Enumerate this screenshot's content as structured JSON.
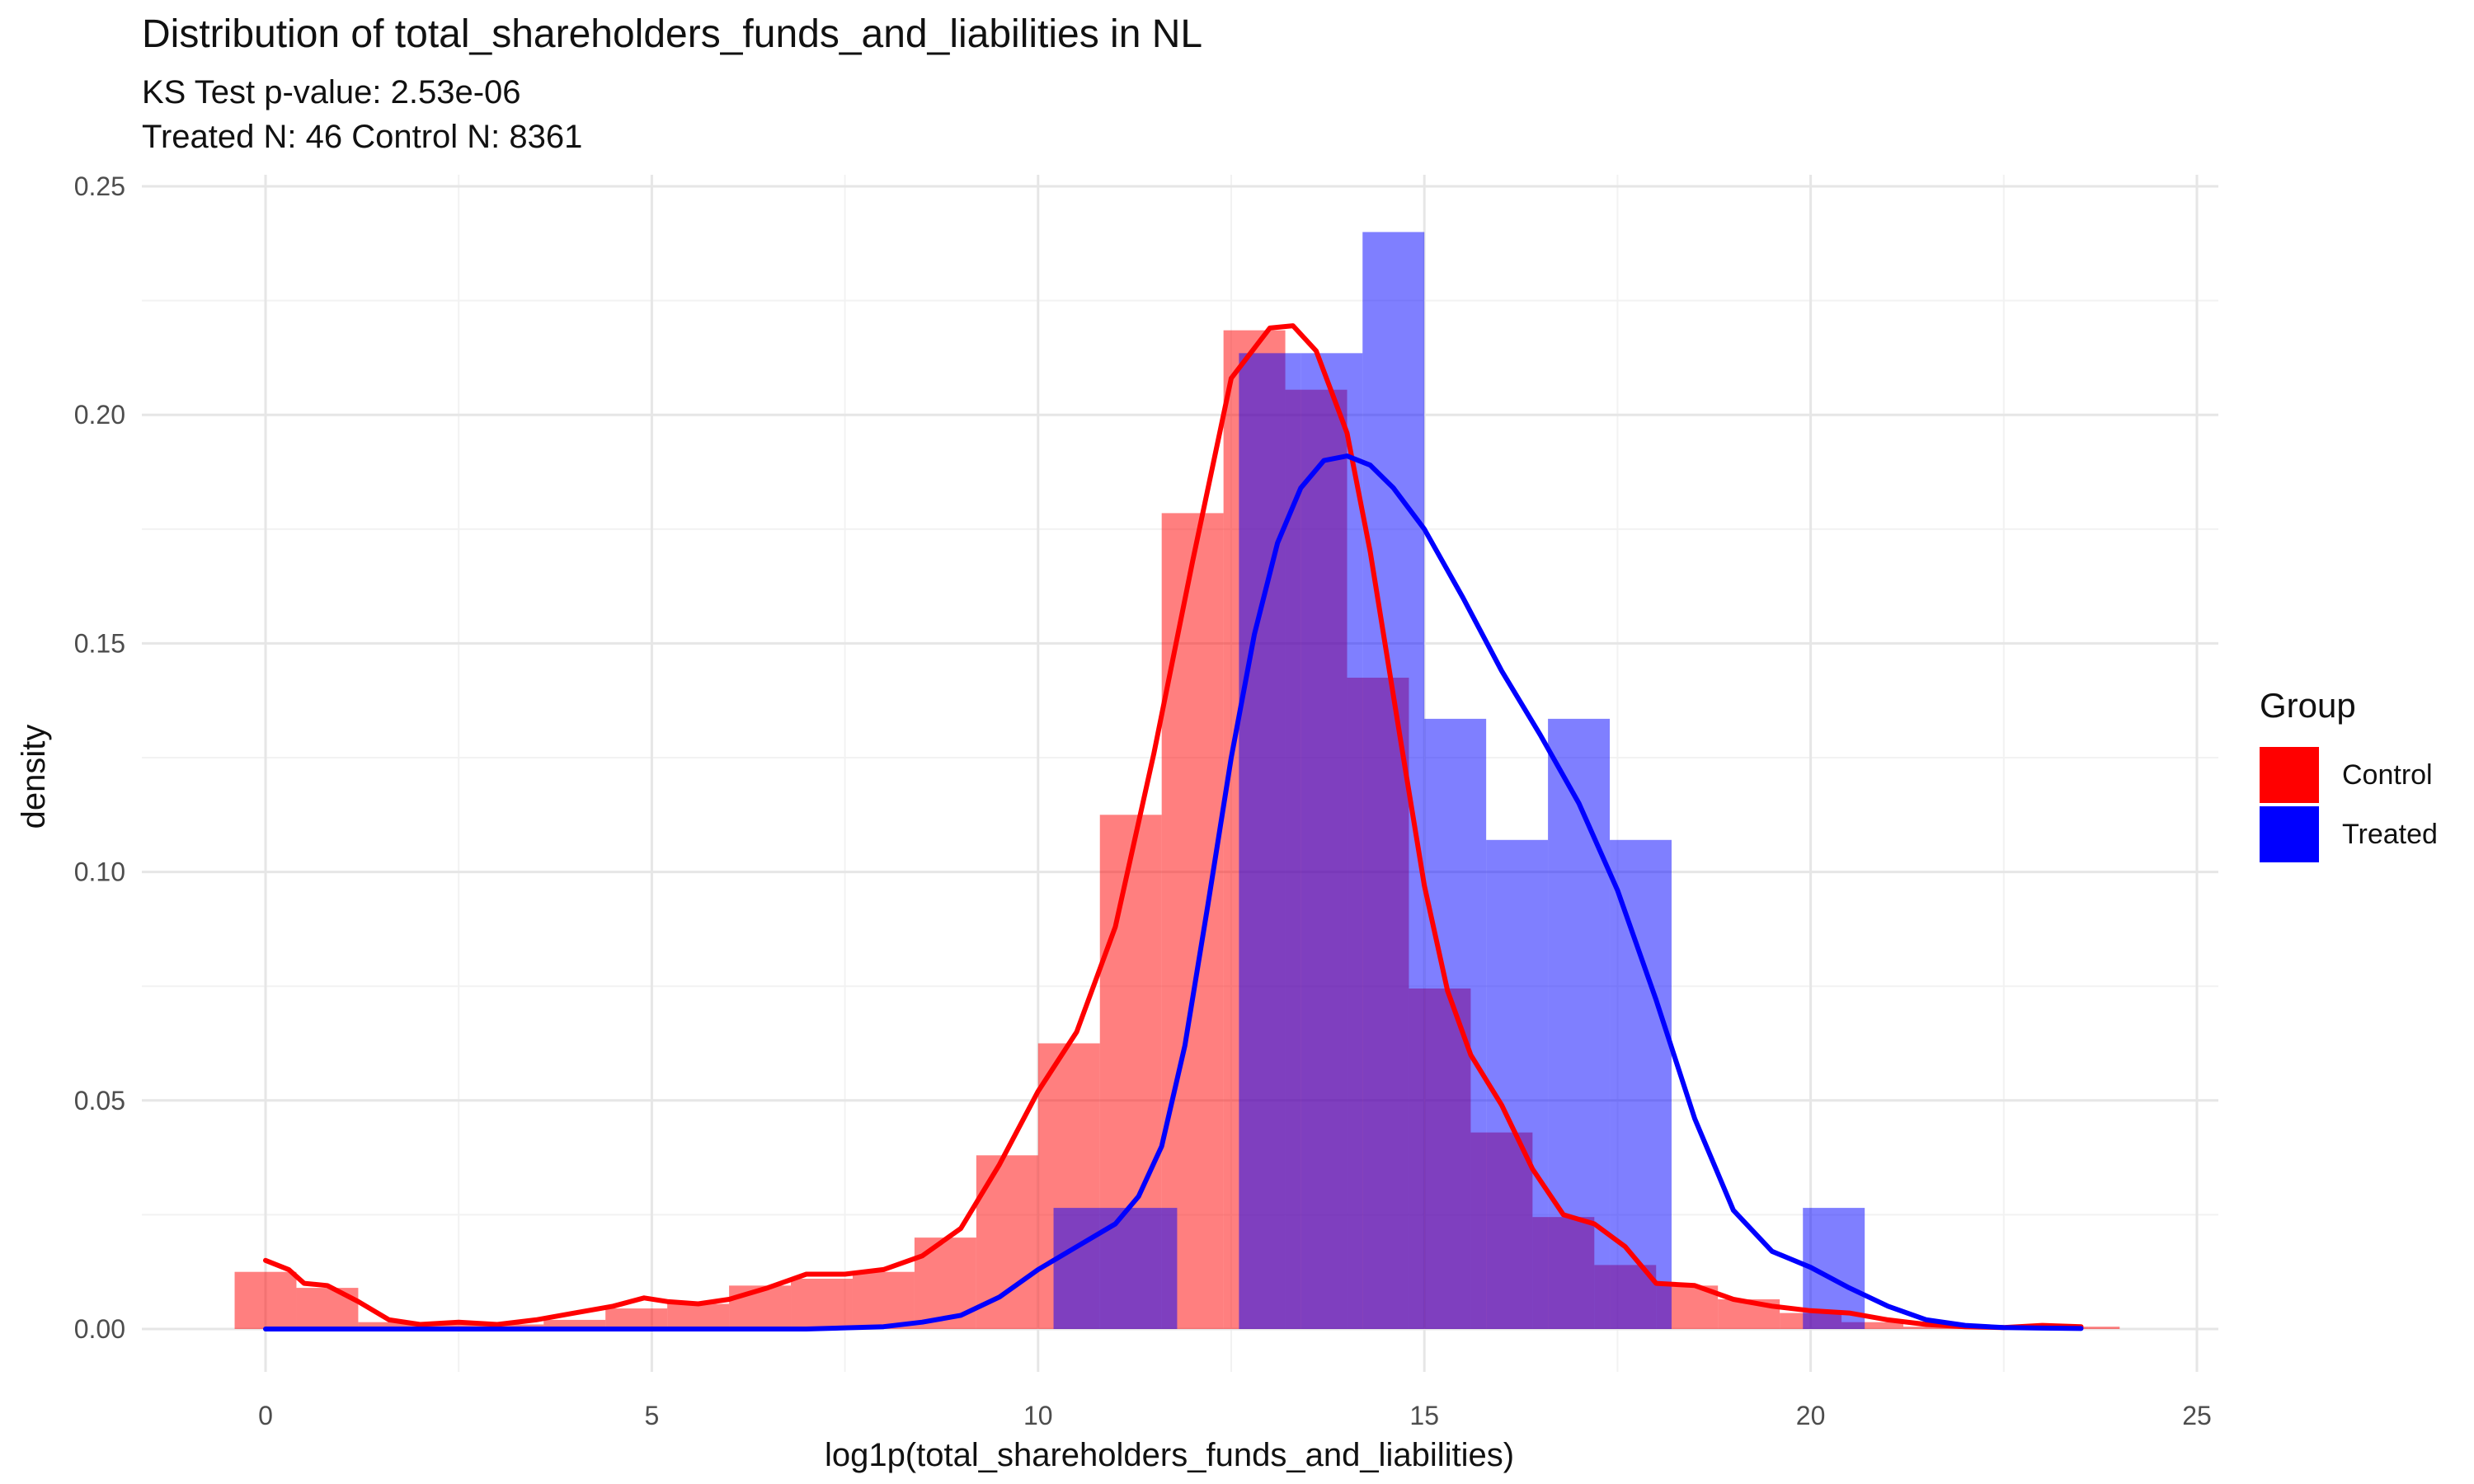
{
  "chart_data": {
    "type": "histogram",
    "title": "Distribution of total_shareholders_funds_and_liabilities in NL",
    "subtitle_lines": [
      "KS Test p-value: 2.53e-06",
      "Treated N: 46 Control N: 8361"
    ],
    "xlabel": "log1p(total_shareholders_funds_and_liabilities)",
    "ylabel": "density",
    "xlim": [
      -1.0,
      25.0
    ],
    "ylim": [
      0.0,
      0.25
    ],
    "x_ticks": [
      0,
      5,
      10,
      15,
      20,
      25
    ],
    "x_tick_labels": [
      "0",
      "5",
      "10",
      "15",
      "20",
      "25"
    ],
    "y_ticks": [
      0.0,
      0.05,
      0.1,
      0.15,
      0.2,
      0.25
    ],
    "y_tick_labels": [
      "0.00",
      "0.05",
      "0.10",
      "0.15",
      "0.20",
      "0.25"
    ],
    "grid": true,
    "legend": {
      "title": "Group",
      "position": "right"
    },
    "histograms": [
      {
        "name": "Control",
        "color": "#ff0000",
        "bin_width": 0.82,
        "bins": [
          {
            "x0": -0.4,
            "x1": 0.4,
            "y": 0.0125
          },
          {
            "x0": 0.4,
            "x1": 1.2,
            "y": 0.009
          },
          {
            "x0": 1.2,
            "x1": 2.0,
            "y": 0.0015
          },
          {
            "x0": 2.0,
            "x1": 2.8,
            "y": 0.0015
          },
          {
            "x0": 2.8,
            "x1": 3.6,
            "y": 0.001
          },
          {
            "x0": 3.6,
            "x1": 4.4,
            "y": 0.002
          },
          {
            "x0": 4.4,
            "x1": 5.2,
            "y": 0.0045
          },
          {
            "x0": 5.2,
            "x1": 6.0,
            "y": 0.0055
          },
          {
            "x0": 6.0,
            "x1": 6.8,
            "y": 0.0095
          },
          {
            "x0": 6.8,
            "x1": 7.6,
            "y": 0.011
          },
          {
            "x0": 7.6,
            "x1": 8.4,
            "y": 0.0125
          },
          {
            "x0": 8.4,
            "x1": 9.2,
            "y": 0.02
          },
          {
            "x0": 9.2,
            "x1": 10.0,
            "y": 0.038
          },
          {
            "x0": 10.0,
            "x1": 10.8,
            "y": 0.0625
          },
          {
            "x0": 10.8,
            "x1": 11.6,
            "y": 0.1125
          },
          {
            "x0": 11.6,
            "x1": 12.4,
            "y": 0.1785
          },
          {
            "x0": 12.4,
            "x1": 13.2,
            "y": 0.2185
          },
          {
            "x0": 13.2,
            "x1": 14.0,
            "y": 0.2055
          },
          {
            "x0": 14.0,
            "x1": 14.8,
            "y": 0.1425
          },
          {
            "x0": 14.8,
            "x1": 15.6,
            "y": 0.0745
          },
          {
            "x0": 15.6,
            "x1": 16.4,
            "y": 0.043
          },
          {
            "x0": 16.4,
            "x1": 17.2,
            "y": 0.0245
          },
          {
            "x0": 17.2,
            "x1": 18.0,
            "y": 0.014
          },
          {
            "x0": 18.0,
            "x1": 18.8,
            "y": 0.0095
          },
          {
            "x0": 18.8,
            "x1": 19.6,
            "y": 0.0065
          },
          {
            "x0": 19.6,
            "x1": 20.4,
            "y": 0.0035
          },
          {
            "x0": 20.4,
            "x1": 21.2,
            "y": 0.0015
          },
          {
            "x0": 21.2,
            "x1": 22.0,
            "y": 0.0005
          },
          {
            "x0": 22.0,
            "x1": 22.8,
            "y": 0.0005
          },
          {
            "x0": 22.8,
            "x1": 23.6,
            "y": 0.0005
          },
          {
            "x0": 23.6,
            "x1": 24.0,
            "y": 0.0005
          }
        ]
      },
      {
        "name": "Treated",
        "color": "#0000ff",
        "bin_width": 0.82,
        "bins": [
          {
            "x0": 10.2,
            "x1": 11.0,
            "y": 0.0265
          },
          {
            "x0": 11.0,
            "x1": 11.8,
            "y": 0.0265
          },
          {
            "x0": 12.6,
            "x1": 13.4,
            "y": 0.2135
          },
          {
            "x0": 13.4,
            "x1": 14.2,
            "y": 0.2135
          },
          {
            "x0": 14.2,
            "x1": 15.0,
            "y": 0.24
          },
          {
            "x0": 15.0,
            "x1": 15.8,
            "y": 0.1335
          },
          {
            "x0": 15.8,
            "x1": 16.6,
            "y": 0.107
          },
          {
            "x0": 16.6,
            "x1": 17.4,
            "y": 0.1335
          },
          {
            "x0": 17.4,
            "x1": 18.2,
            "y": 0.107
          },
          {
            "x0": 19.9,
            "x1": 20.7,
            "y": 0.0265
          }
        ]
      }
    ],
    "density_curves": [
      {
        "name": "Control",
        "color": "#ff0000",
        "points": [
          [
            0.0,
            0.015
          ],
          [
            0.3,
            0.013
          ],
          [
            0.5,
            0.01
          ],
          [
            0.8,
            0.0095
          ],
          [
            1.2,
            0.006
          ],
          [
            1.6,
            0.002
          ],
          [
            2.0,
            0.001
          ],
          [
            2.5,
            0.0015
          ],
          [
            3.0,
            0.001
          ],
          [
            3.5,
            0.002
          ],
          [
            4.0,
            0.0035
          ],
          [
            4.5,
            0.005
          ],
          [
            4.9,
            0.0068
          ],
          [
            5.2,
            0.006
          ],
          [
            5.6,
            0.0055
          ],
          [
            6.0,
            0.0065
          ],
          [
            6.5,
            0.009
          ],
          [
            7.0,
            0.012
          ],
          [
            7.5,
            0.012
          ],
          [
            8.0,
            0.013
          ],
          [
            8.5,
            0.016
          ],
          [
            9.0,
            0.022
          ],
          [
            9.5,
            0.036
          ],
          [
            10.0,
            0.052
          ],
          [
            10.5,
            0.065
          ],
          [
            11.0,
            0.088
          ],
          [
            11.5,
            0.126
          ],
          [
            12.0,
            0.168
          ],
          [
            12.5,
            0.208
          ],
          [
            13.0,
            0.219
          ],
          [
            13.3,
            0.2195
          ],
          [
            13.6,
            0.214
          ],
          [
            14.0,
            0.196
          ],
          [
            14.3,
            0.17
          ],
          [
            14.7,
            0.128
          ],
          [
            15.0,
            0.097
          ],
          [
            15.3,
            0.074
          ],
          [
            15.6,
            0.06
          ],
          [
            16.0,
            0.049
          ],
          [
            16.4,
            0.035
          ],
          [
            16.8,
            0.025
          ],
          [
            17.2,
            0.023
          ],
          [
            17.6,
            0.018
          ],
          [
            18.0,
            0.01
          ],
          [
            18.5,
            0.0095
          ],
          [
            19.0,
            0.0065
          ],
          [
            19.5,
            0.005
          ],
          [
            20.0,
            0.004
          ],
          [
            20.5,
            0.0035
          ],
          [
            21.0,
            0.002
          ],
          [
            21.5,
            0.001
          ],
          [
            22.0,
            0.0005
          ],
          [
            22.5,
            0.0003
          ],
          [
            23.0,
            0.0008
          ],
          [
            23.5,
            0.0005
          ]
        ]
      },
      {
        "name": "Treated",
        "color": "#0000ff",
        "points": [
          [
            0.0,
            0.0
          ],
          [
            4.0,
            0.0
          ],
          [
            7.0,
            0.0
          ],
          [
            8.0,
            0.0005
          ],
          [
            8.5,
            0.0015
          ],
          [
            9.0,
            0.003
          ],
          [
            9.5,
            0.007
          ],
          [
            10.0,
            0.013
          ],
          [
            10.5,
            0.018
          ],
          [
            11.0,
            0.023
          ],
          [
            11.3,
            0.029
          ],
          [
            11.6,
            0.04
          ],
          [
            11.9,
            0.062
          ],
          [
            12.2,
            0.093
          ],
          [
            12.5,
            0.125
          ],
          [
            12.8,
            0.152
          ],
          [
            13.1,
            0.172
          ],
          [
            13.4,
            0.184
          ],
          [
            13.7,
            0.19
          ],
          [
            14.0,
            0.191
          ],
          [
            14.3,
            0.189
          ],
          [
            14.6,
            0.184
          ],
          [
            15.0,
            0.175
          ],
          [
            15.5,
            0.16
          ],
          [
            16.0,
            0.144
          ],
          [
            16.5,
            0.13
          ],
          [
            17.0,
            0.115
          ],
          [
            17.5,
            0.096
          ],
          [
            18.0,
            0.072
          ],
          [
            18.5,
            0.046
          ],
          [
            19.0,
            0.026
          ],
          [
            19.5,
            0.017
          ],
          [
            20.0,
            0.0135
          ],
          [
            20.5,
            0.009
          ],
          [
            21.0,
            0.005
          ],
          [
            21.5,
            0.002
          ],
          [
            22.0,
            0.0008
          ],
          [
            22.5,
            0.0003
          ],
          [
            23.0,
            0.0002
          ],
          [
            23.5,
            0.0001
          ]
        ]
      }
    ]
  }
}
